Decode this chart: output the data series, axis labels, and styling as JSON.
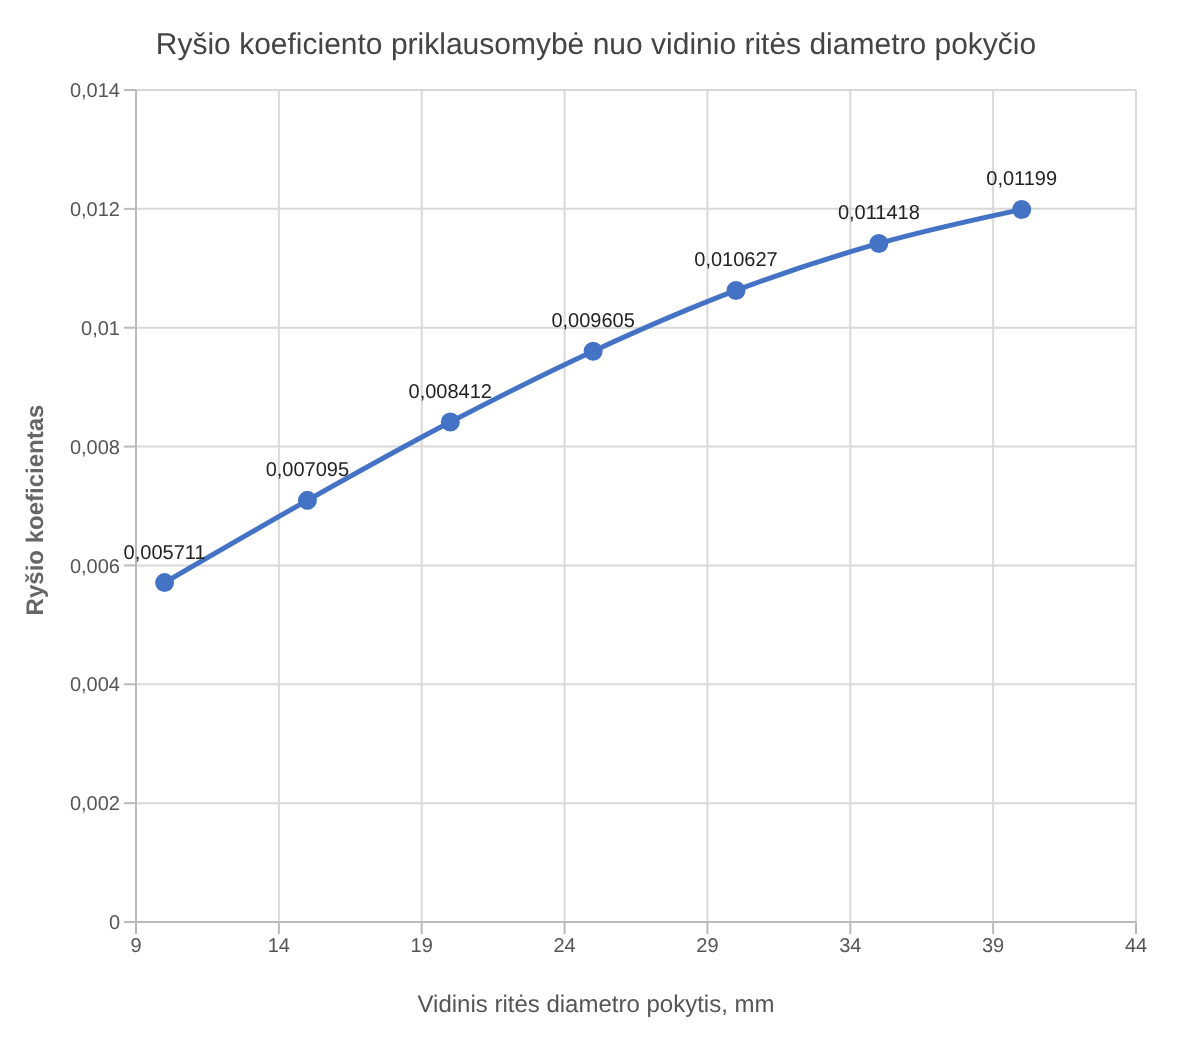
{
  "chart_data": {
    "type": "line",
    "title": "Ryšio koeficiento priklausomybė nuo vidinio ritės diametro pokyčio",
    "xlabel": "Vidinis ritės diametro pokytis, mm",
    "ylabel": "Ryšio koeficientas",
    "x": [
      10,
      15,
      20,
      25,
      30,
      35,
      40
    ],
    "series": [
      {
        "color": "#4472c4",
        "values": [
          0.005711,
          0.007095,
          0.008412,
          0.009605,
          0.010627,
          0.011418,
          0.01199
        ],
        "value_labels": [
          "0,005711",
          "0,007095",
          "0,008412",
          "0,009605",
          "0,010627",
          "0,011418",
          "0,01199"
        ]
      }
    ],
    "xlim": [
      9,
      44
    ],
    "xticks": [
      9,
      14,
      19,
      24,
      29,
      34,
      39,
      44
    ],
    "ylim": [
      0,
      0.014
    ],
    "yticks": [
      {
        "value": 0,
        "label": "0"
      },
      {
        "value": 0.002,
        "label": "0,002"
      },
      {
        "value": 0.004,
        "label": "0,004"
      },
      {
        "value": 0.006,
        "label": "0,006"
      },
      {
        "value": 0.008,
        "label": "0,008"
      },
      {
        "value": 0.01,
        "label": "0,01"
      },
      {
        "value": 0.012,
        "label": "0,012"
      },
      {
        "value": 0.014,
        "label": "0,014"
      }
    ],
    "grid": true,
    "marker": "circle",
    "line_style": "solid"
  }
}
